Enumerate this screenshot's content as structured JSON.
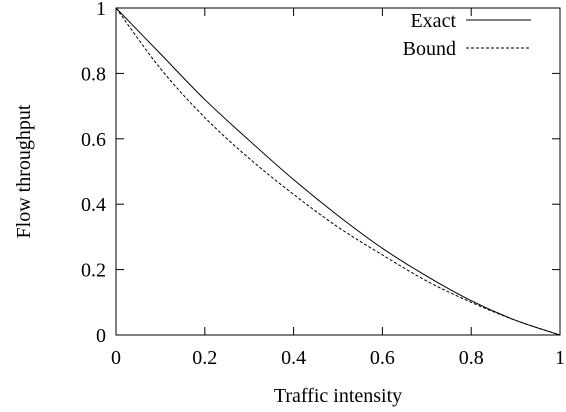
{
  "chart_data": {
    "type": "line",
    "xlabel": "Traffic intensity",
    "ylabel": "Flow throughput",
    "xlim": [
      0,
      1
    ],
    "ylim": [
      0,
      1
    ],
    "xticks": [
      "0",
      "0.2",
      "0.4",
      "0.6",
      "0.8",
      "1"
    ],
    "yticks": [
      "0",
      "0.2",
      "0.4",
      "0.6",
      "0.8",
      "1"
    ],
    "grid": false,
    "legend_position": "top-right",
    "x": [
      0,
      0.1,
      0.2,
      0.3,
      0.4,
      0.5,
      0.6,
      0.7,
      0.8,
      0.9,
      1.0
    ],
    "series": [
      {
        "name": "Exact",
        "style": "solid",
        "color": "#000000",
        "values": [
          1.0,
          0.86,
          0.72,
          0.595,
          0.475,
          0.365,
          0.265,
          0.18,
          0.105,
          0.045,
          0.0
        ]
      },
      {
        "name": "Bound",
        "style": "dashed",
        "color": "#000000",
        "values": [
          1.0,
          0.815,
          0.665,
          0.54,
          0.43,
          0.33,
          0.245,
          0.165,
          0.1,
          0.045,
          0.0
        ]
      }
    ]
  }
}
